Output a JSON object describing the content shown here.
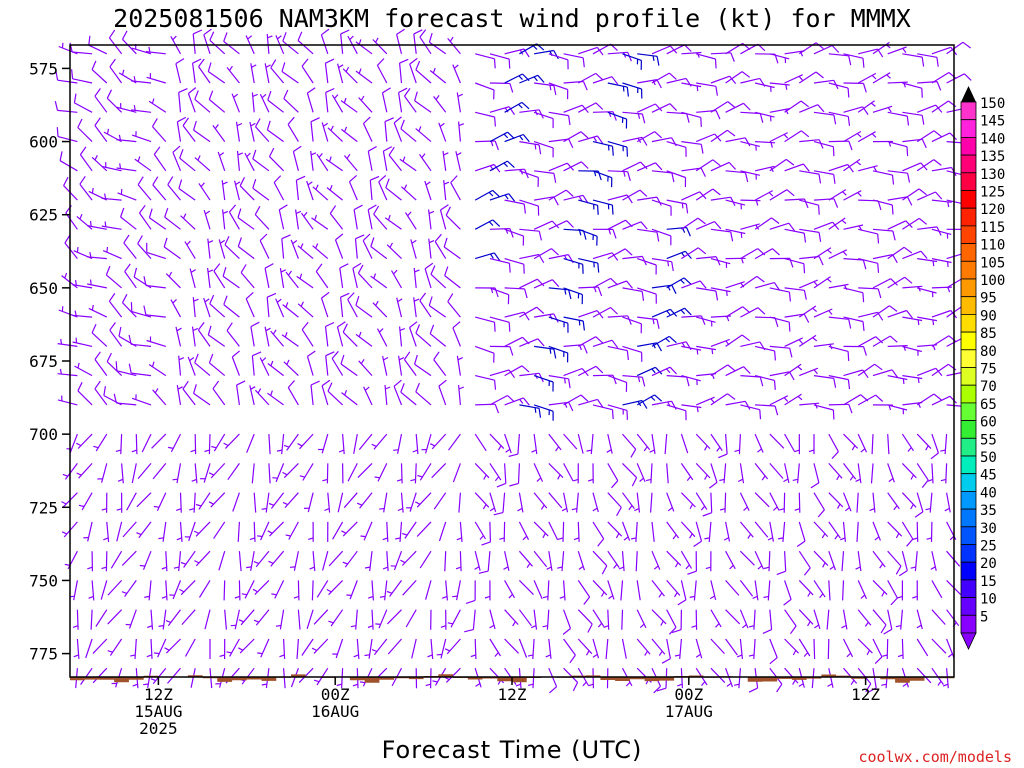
{
  "chart_data": {
    "type": "wind-barb-profile",
    "title": "2025081506 NAM3KM forecast wind profile (kt) for MMMX",
    "xlabel": "Forecast Time (UTC)",
    "credit": "coolwx.com/models",
    "y_ticks": [
      "575",
      "600",
      "625",
      "650",
      "675",
      "700",
      "725",
      "750",
      "775"
    ],
    "ylim": [
      783,
      567
    ],
    "x_ticks": [
      {
        "hour": 6,
        "lines": [
          "12Z",
          "15AUG",
          "2025"
        ]
      },
      {
        "hour": 18,
        "lines": [
          "00Z",
          "16AUG"
        ]
      },
      {
        "hour": 30,
        "lines": [
          "12Z"
        ]
      },
      {
        "hour": 42,
        "lines": [
          "00Z",
          "17AUG"
        ]
      },
      {
        "hour": 54,
        "lines": [
          "12Z"
        ]
      }
    ],
    "x_range_hours": [
      0,
      60
    ],
    "colorbar": {
      "labels": [
        "150",
        "145",
        "140",
        "135",
        "130",
        "125",
        "120",
        "115",
        "110",
        "105",
        "100",
        "95",
        "90",
        "85",
        "80",
        "75",
        "70",
        "65",
        "60",
        "55",
        "50",
        "45",
        "40",
        "35",
        "30",
        "25",
        "20",
        "15",
        "10",
        "5"
      ],
      "colors": [
        "#ff33cc",
        "#ff22dd",
        "#ff00aa",
        "#ff0077",
        "#ff0044",
        "#ff0000",
        "#ff2200",
        "#ff4400",
        "#ff6600",
        "#ff7a00",
        "#ff9900",
        "#ffbb00",
        "#ffdd00",
        "#ffff00",
        "#ffff33",
        "#ddff22",
        "#aaff00",
        "#66ff33",
        "#33ee33",
        "#22ee88",
        "#00eebb",
        "#00ccee",
        "#0099ff",
        "#0077ff",
        "#0055ff",
        "#0033ff",
        "#0000ff",
        "#4400ff",
        "#6600ff",
        "#8800ff"
      ]
    },
    "terrain_color": "#a0522d",
    "barb_color": "#8800ff",
    "strong_barb_color": "#0000cc",
    "wind_profile": {
      "levels_hpa": [
        570,
        580,
        590,
        600,
        610,
        620,
        630,
        640,
        650,
        660,
        670,
        680,
        690,
        700,
        710,
        720,
        730,
        740,
        750,
        760,
        770,
        780
      ],
      "hours_hpa_note": "hourly columns, hour 0 at left edge",
      "hours": [
        1,
        2,
        3,
        4,
        5,
        6,
        7,
        8,
        9,
        10,
        11,
        12,
        13,
        14,
        15,
        16,
        17,
        18,
        19,
        20,
        21,
        22,
        23,
        24,
        25,
        26,
        27,
        28,
        29,
        30,
        31,
        32,
        33,
        34,
        35,
        36,
        37,
        38,
        39,
        40,
        41,
        42,
        43,
        44,
        45,
        46,
        47,
        48,
        49,
        50,
        51,
        52,
        53,
        54,
        55,
        56,
        57,
        58,
        59,
        60
      ],
      "regimes": [
        {
          "from_hour": 0,
          "to_hour": 8,
          "dir_deg": 300,
          "speed_kt": 8
        },
        {
          "from_hour": 8,
          "to_hour": 28,
          "dir_deg": 330,
          "speed_kt": 8
        },
        {
          "from_hour": 28,
          "to_hour": 42,
          "dir_deg": 85,
          "speed_kt": 12
        },
        {
          "from_hour": 42,
          "to_hour": 60,
          "dir_deg": 80,
          "speed_kt": 9
        }
      ],
      "low_level_regimes": [
        {
          "from_hour": 0,
          "to_hour": 28,
          "dir_deg": 200,
          "speed_kt": 4
        },
        {
          "from_hour": 28,
          "to_hour": 60,
          "dir_deg": 160,
          "speed_kt": 5
        }
      ]
    }
  }
}
